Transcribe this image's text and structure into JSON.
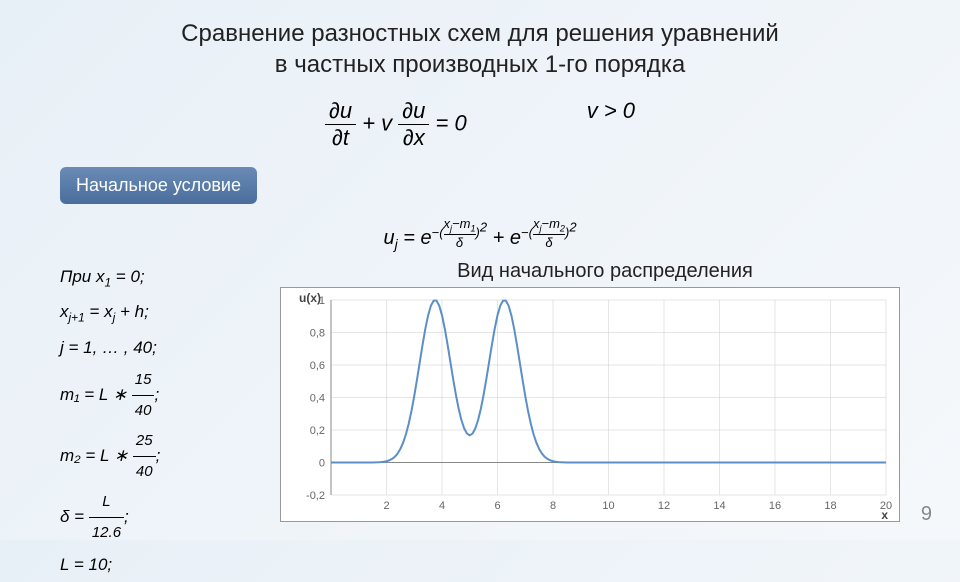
{
  "title_line1": "Сравнение разностных схем для решения уравнений",
  "title_line2": "в частных производных 1-го порядка",
  "pde_lhs": "∂u/∂t + v ∂u/∂x = 0",
  "pde_cond": "v > 0",
  "badge": "Начальное условие",
  "ic_formula": "uⱼ = e^{-((xⱼ−m₁)/δ)²} + e^{-((xⱼ−m₂)/δ)²}",
  "params": {
    "p0": "При x₁ = 0;",
    "p1": "xⱼ₊₁ = xⱼ + h;",
    "p2": "j = 1, … , 40;",
    "p3_lhs": "m₁ = L ∗",
    "p3_num": "15",
    "p3_den": "40",
    "p4_lhs": "m₂ = L ∗",
    "p4_num": "25",
    "p4_den": "40",
    "p5_lhs": "δ =",
    "p5_num": "L",
    "p5_den": "12.6",
    "p6": "L = 10;"
  },
  "chart": {
    "caption": "Вид начального распределения",
    "ylabel": "u(x)",
    "xlabel": "x",
    "xlim": [
      0,
      20
    ],
    "ylim": [
      -0.2,
      1.0
    ],
    "xticks": [
      2,
      4,
      6,
      8,
      10,
      12,
      14,
      16,
      18,
      20
    ],
    "yticks": [
      -0.2,
      0,
      0.2,
      0.4,
      0.6,
      0.8,
      1
    ],
    "grid_color": "#cccccc",
    "line_color": "#5b8fc7",
    "line_width": 2,
    "background": "#ffffff",
    "tick_fontsize": 11,
    "tick_color": "#666666",
    "m1": 3.75,
    "m2": 6.25,
    "delta": 0.7937,
    "n_points": 200
  },
  "pagenum": "9"
}
